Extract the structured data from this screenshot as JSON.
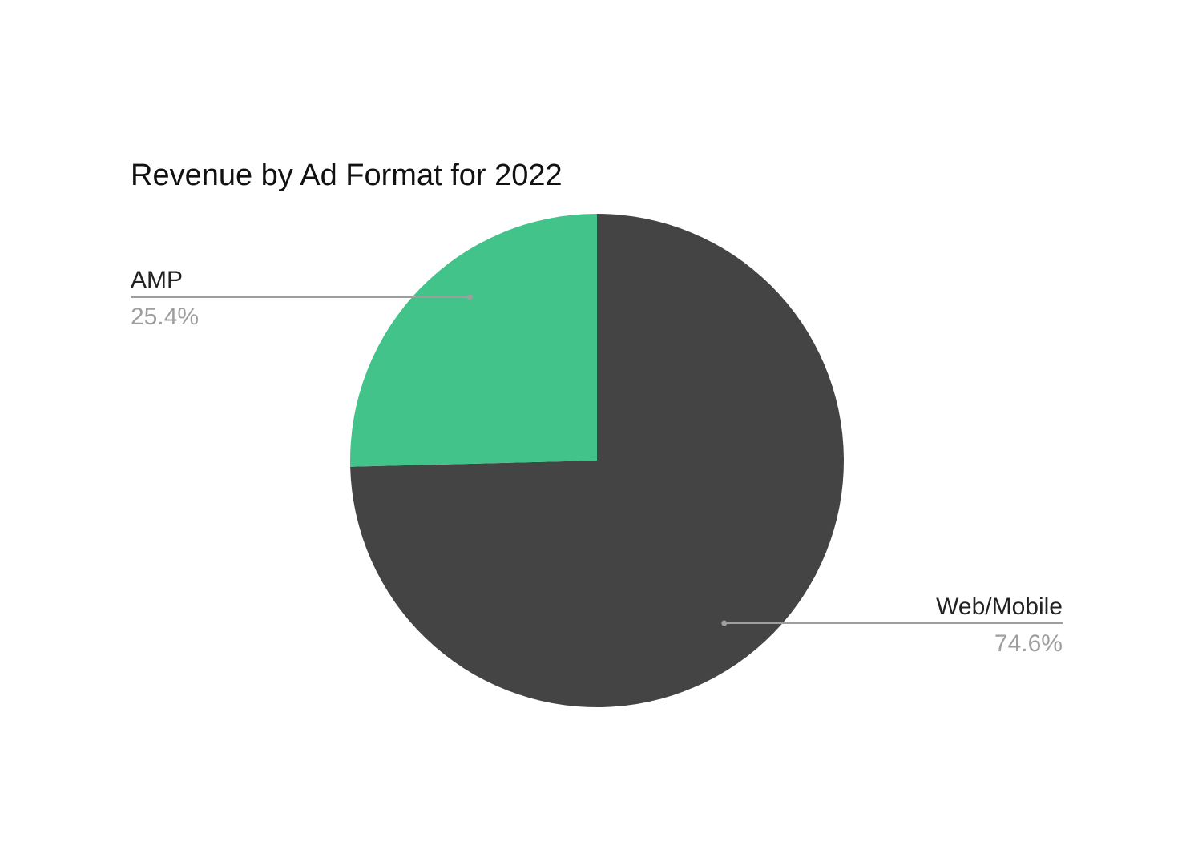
{
  "chart_data": {
    "type": "pie",
    "title": "Revenue by Ad Format for 2022",
    "start_angle_deg": 0,
    "direction": "clockwise",
    "slices": [
      {
        "name": "Web/Mobile",
        "value": 74.6,
        "label": "74.6%",
        "color": "#444444"
      },
      {
        "name": "AMP",
        "value": 25.4,
        "label": "25.4%",
        "color": "#41c38a"
      }
    ],
    "legend": "none",
    "leader_line_color": "#9e9e9e"
  }
}
